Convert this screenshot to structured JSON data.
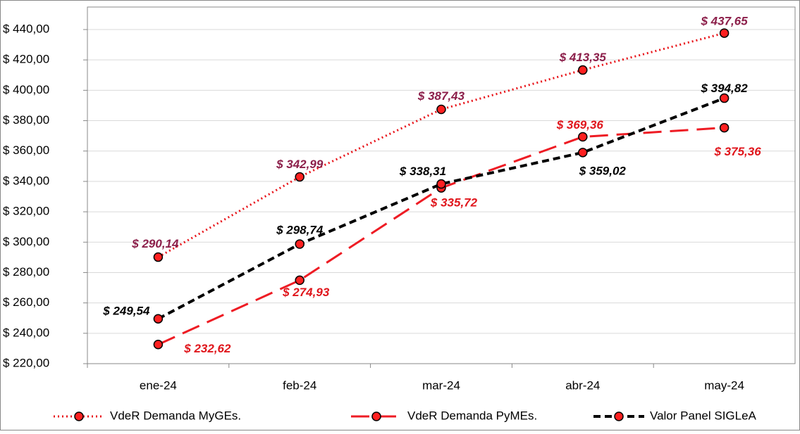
{
  "chart_data": {
    "type": "line",
    "categories": [
      "ene-24",
      "feb-24",
      "mar-24",
      "abr-24",
      "may-24"
    ],
    "series": [
      {
        "name": "VdeR Demanda MyGEs.",
        "color": "#e8141a",
        "label_color": "#8c1f4a",
        "dash": "dotted",
        "values": [
          290.14,
          342.99,
          387.43,
          413.35,
          437.65
        ],
        "value_labels": [
          "$ 290,14",
          "$ 342,99",
          "$ 387,43",
          "$ 413,35",
          "$ 437,65"
        ]
      },
      {
        "name": "VdeR Demanda PyMEs.",
        "color": "#ee1c24",
        "label_color": "#e0161c",
        "dash": "long",
        "values": [
          232.62,
          274.93,
          335.72,
          369.36,
          375.36
        ],
        "value_labels": [
          "$ 232,62",
          "$ 274,93",
          "$ 335,72",
          "$ 369,36",
          "$ 375,36"
        ]
      },
      {
        "name": "Valor Panel SIGLeA",
        "color": "#000000",
        "label_color": "#000000",
        "dash": "medium",
        "values": [
          249.54,
          298.74,
          338.31,
          359.02,
          394.82
        ],
        "value_labels": [
          "$ 249,54",
          "$ 298,74",
          "$ 338,31",
          "$ 359,02",
          "$ 394,82"
        ]
      }
    ],
    "marker_color": "#ff2020",
    "ylim": [
      220,
      440
    ],
    "yticks": [
      {
        "value": 220,
        "label": "$ 220,00"
      },
      {
        "value": 240,
        "label": "$ 240,00"
      },
      {
        "value": 260,
        "label": "$ 260,00"
      },
      {
        "value": 280,
        "label": "$ 280,00"
      },
      {
        "value": 300,
        "label": "$ 300,00"
      },
      {
        "value": 320,
        "label": "$ 320,00"
      },
      {
        "value": 340,
        "label": "$ 340,00"
      },
      {
        "value": 360,
        "label": "$ 360,00"
      },
      {
        "value": 380,
        "label": "$ 380,00"
      },
      {
        "value": 400,
        "label": "$ 400,00"
      },
      {
        "value": 420,
        "label": "$ 420,00"
      },
      {
        "value": 440,
        "label": "$ 440,00"
      }
    ],
    "grid": true,
    "legend": "bottom"
  }
}
